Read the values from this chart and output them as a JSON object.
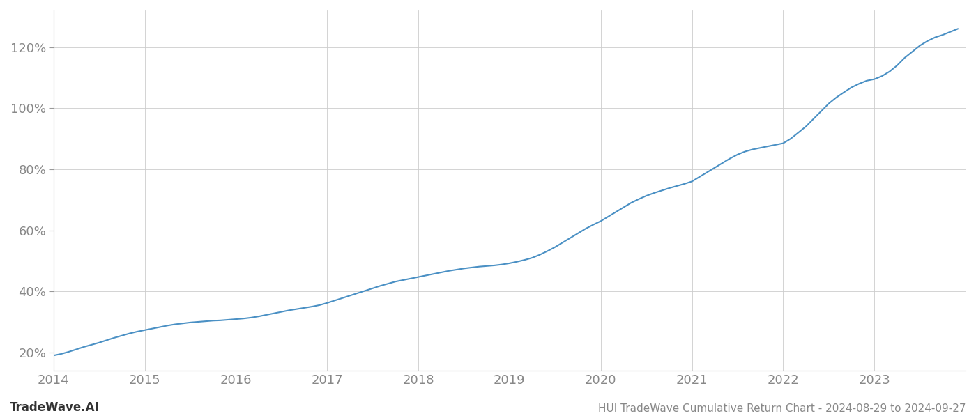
{
  "title": "HUI TradeWave Cumulative Return Chart - 2024-08-29 to 2024-09-27",
  "watermark": "TradeWave.AI",
  "line_color": "#4a90c4",
  "background_color": "#ffffff",
  "grid_color": "#cccccc",
  "x_years": [
    2014,
    2015,
    2016,
    2017,
    2018,
    2019,
    2020,
    2021,
    2022,
    2023
  ],
  "x_values": [
    2014.0,
    2014.083,
    2014.167,
    2014.25,
    2014.333,
    2014.417,
    2014.5,
    2014.583,
    2014.667,
    2014.75,
    2014.833,
    2014.917,
    2015.0,
    2015.083,
    2015.167,
    2015.25,
    2015.333,
    2015.417,
    2015.5,
    2015.583,
    2015.667,
    2015.75,
    2015.833,
    2015.917,
    2016.0,
    2016.083,
    2016.167,
    2016.25,
    2016.333,
    2016.417,
    2016.5,
    2016.583,
    2016.667,
    2016.75,
    2016.833,
    2016.917,
    2017.0,
    2017.083,
    2017.167,
    2017.25,
    2017.333,
    2017.417,
    2017.5,
    2017.583,
    2017.667,
    2017.75,
    2017.833,
    2017.917,
    2018.0,
    2018.083,
    2018.167,
    2018.25,
    2018.333,
    2018.417,
    2018.5,
    2018.583,
    2018.667,
    2018.75,
    2018.833,
    2018.917,
    2019.0,
    2019.083,
    2019.167,
    2019.25,
    2019.333,
    2019.417,
    2019.5,
    2019.583,
    2019.667,
    2019.75,
    2019.833,
    2019.917,
    2020.0,
    2020.083,
    2020.167,
    2020.25,
    2020.333,
    2020.417,
    2020.5,
    2020.583,
    2020.667,
    2020.75,
    2020.833,
    2020.917,
    2021.0,
    2021.083,
    2021.167,
    2021.25,
    2021.333,
    2021.417,
    2021.5,
    2021.583,
    2021.667,
    2021.75,
    2021.833,
    2021.917,
    2022.0,
    2022.083,
    2022.167,
    2022.25,
    2022.333,
    2022.417,
    2022.5,
    2022.583,
    2022.667,
    2022.75,
    2022.833,
    2022.917,
    2023.0,
    2023.083,
    2023.167,
    2023.25,
    2023.333,
    2023.417,
    2023.5,
    2023.583,
    2023.667,
    2023.75,
    2023.833,
    2023.917
  ],
  "y_values": [
    19.0,
    19.5,
    20.2,
    21.0,
    21.8,
    22.5,
    23.2,
    24.0,
    24.8,
    25.5,
    26.2,
    26.8,
    27.3,
    27.8,
    28.3,
    28.8,
    29.2,
    29.5,
    29.8,
    30.0,
    30.2,
    30.4,
    30.5,
    30.7,
    30.9,
    31.1,
    31.4,
    31.8,
    32.3,
    32.8,
    33.3,
    33.8,
    34.2,
    34.6,
    35.0,
    35.5,
    36.2,
    37.0,
    37.8,
    38.6,
    39.4,
    40.2,
    41.0,
    41.8,
    42.5,
    43.2,
    43.7,
    44.2,
    44.7,
    45.2,
    45.7,
    46.2,
    46.7,
    47.1,
    47.5,
    47.8,
    48.1,
    48.3,
    48.5,
    48.8,
    49.2,
    49.7,
    50.3,
    51.0,
    52.0,
    53.2,
    54.5,
    56.0,
    57.5,
    59.0,
    60.5,
    61.8,
    63.0,
    64.5,
    66.0,
    67.5,
    69.0,
    70.2,
    71.3,
    72.2,
    73.0,
    73.8,
    74.5,
    75.2,
    76.0,
    77.5,
    79.0,
    80.5,
    82.0,
    83.5,
    84.8,
    85.8,
    86.5,
    87.0,
    87.5,
    88.0,
    88.5,
    90.0,
    92.0,
    94.0,
    96.5,
    99.0,
    101.5,
    103.5,
    105.2,
    106.8,
    108.0,
    109.0,
    109.5,
    110.5,
    112.0,
    114.0,
    116.5,
    118.5,
    120.5,
    122.0,
    123.2,
    124.0,
    125.0,
    126.0
  ],
  "ylim": [
    14,
    132
  ],
  "yticks": [
    20,
    40,
    60,
    80,
    100,
    120
  ],
  "xlim": [
    2014.0,
    2024.0
  ],
  "tick_label_color": "#888888",
  "spine_color": "#999999",
  "title_fontsize": 11,
  "tick_fontsize": 13,
  "watermark_fontsize": 12
}
